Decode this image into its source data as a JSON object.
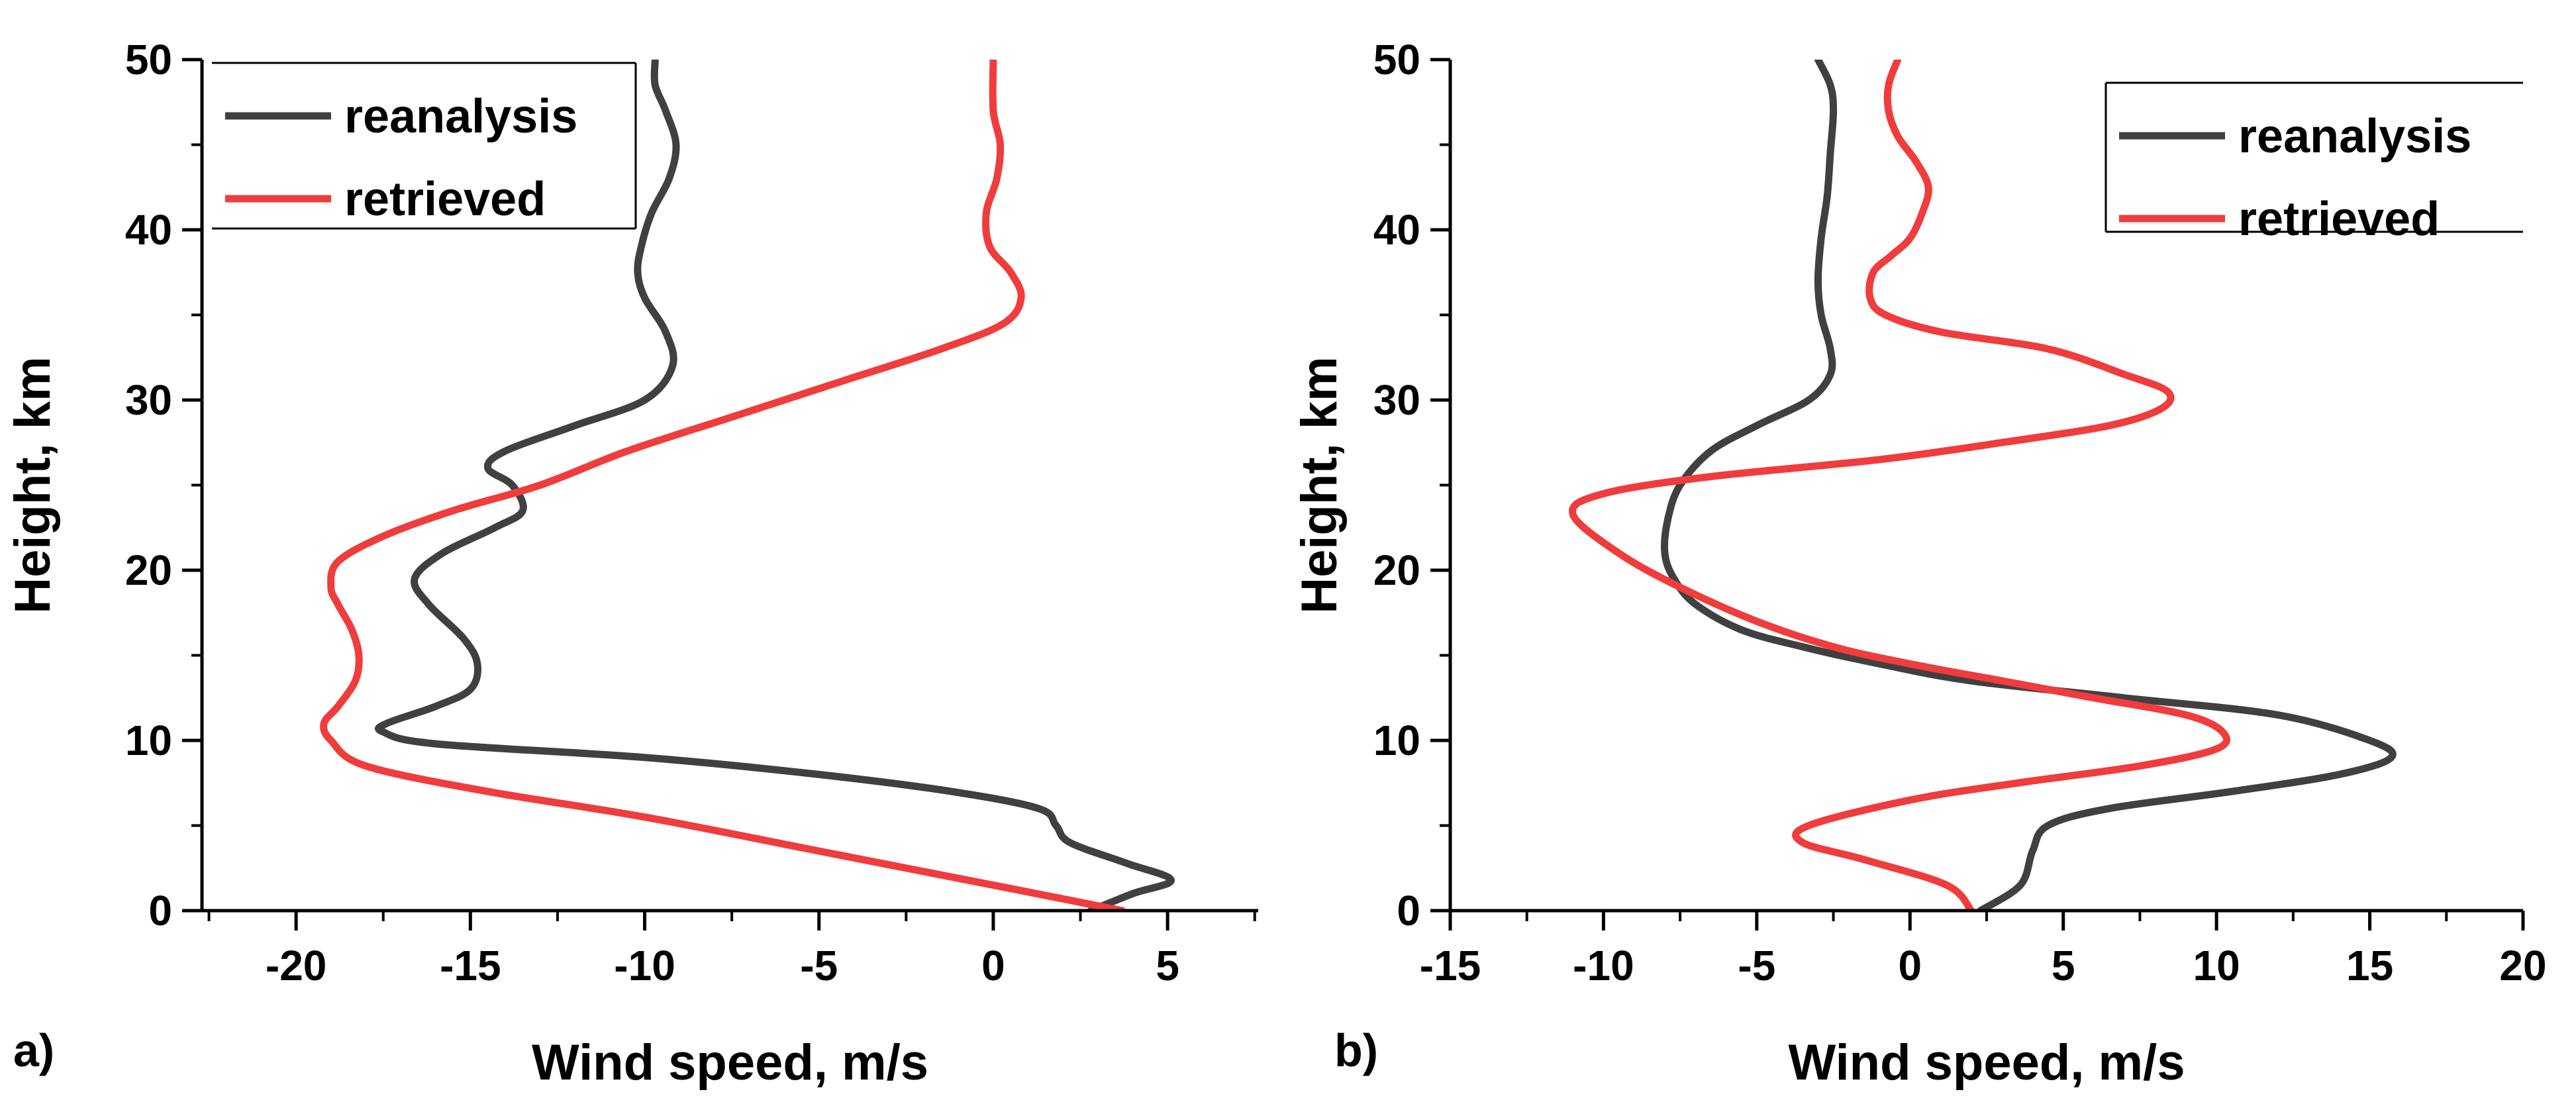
{
  "chart_data": [
    {
      "panel_label": "a)",
      "type": "line",
      "xlabel": "Wind speed, m/s",
      "ylabel": "Height, km",
      "xlim": [
        -22.7,
        7.6
      ],
      "ylim": [
        0,
        50
      ],
      "xticks": [
        -20,
        -15,
        -10,
        -5,
        0,
        5
      ],
      "yticks": [
        0,
        10,
        20,
        30,
        40,
        50
      ],
      "legend": {
        "position": "top-left",
        "entries": [
          "reanalysis",
          "retrieved"
        ]
      },
      "series": [
        {
          "name": "reanalysis",
          "color": "#404040",
          "points": [
            [
              2.8,
              0
            ],
            [
              4.0,
              1
            ],
            [
              5.1,
              1.8
            ],
            [
              3.8,
              2.8
            ],
            [
              2.2,
              4
            ],
            [
              1.8,
              5
            ],
            [
              1.3,
              6
            ],
            [
              -1.2,
              7
            ],
            [
              -5.0,
              8
            ],
            [
              -10.0,
              9
            ],
            [
              -16.0,
              9.8
            ],
            [
              -17.5,
              10.5
            ],
            [
              -17.4,
              11
            ],
            [
              -16.0,
              12
            ],
            [
              -15.0,
              13
            ],
            [
              -14.8,
              14.5
            ],
            [
              -15.2,
              16
            ],
            [
              -16.2,
              18
            ],
            [
              -16.6,
              19.5
            ],
            [
              -15.8,
              21
            ],
            [
              -14.3,
              22.5
            ],
            [
              -13.5,
              23.5
            ],
            [
              -13.8,
              25
            ],
            [
              -14.5,
              26
            ],
            [
              -14.0,
              27
            ],
            [
              -12.0,
              28.5
            ],
            [
              -10.0,
              30
            ],
            [
              -9.2,
              32
            ],
            [
              -9.4,
              34
            ],
            [
              -10.0,
              36
            ],
            [
              -10.2,
              37.5
            ],
            [
              -10.1,
              39
            ],
            [
              -9.8,
              41
            ],
            [
              -9.3,
              43
            ],
            [
              -9.1,
              45
            ],
            [
              -9.4,
              47
            ],
            [
              -9.7,
              48.5
            ],
            [
              -9.7,
              50
            ]
          ]
        },
        {
          "name": "retrieved",
          "color": "#f03c3c",
          "points": [
            [
              3.7,
              0
            ],
            [
              0.0,
              1.5
            ],
            [
              -5.0,
              3.5
            ],
            [
              -10.0,
              5.5
            ],
            [
              -14.5,
              7
            ],
            [
              -18.0,
              8.5
            ],
            [
              -19.0,
              10
            ],
            [
              -19.2,
              11
            ],
            [
              -18.8,
              12
            ],
            [
              -18.3,
              13.5
            ],
            [
              -18.2,
              15
            ],
            [
              -18.4,
              16.5
            ],
            [
              -18.8,
              18
            ],
            [
              -19.0,
              19
            ],
            [
              -18.8,
              20.5
            ],
            [
              -17.5,
              22
            ],
            [
              -15.5,
              23.5
            ],
            [
              -13.0,
              25
            ],
            [
              -10.5,
              27
            ],
            [
              -7.5,
              29
            ],
            [
              -4.5,
              31
            ],
            [
              -1.5,
              33
            ],
            [
              0.3,
              34.5
            ],
            [
              0.8,
              36
            ],
            [
              0.5,
              37.5
            ],
            [
              -0.1,
              39
            ],
            [
              -0.2,
              41
            ],
            [
              0.1,
              43
            ],
            [
              0.2,
              45
            ],
            [
              0.0,
              47
            ],
            [
              0.0,
              50
            ]
          ]
        }
      ]
    },
    {
      "panel_label": "b)",
      "type": "line",
      "xlabel": "Wind speed, m/s",
      "ylabel": "Height, km",
      "xlim": [
        -15,
        20
      ],
      "ylim": [
        0,
        50
      ],
      "xticks": [
        -15,
        -10,
        -5,
        0,
        5,
        10,
        15,
        20
      ],
      "yticks": [
        0,
        10,
        20,
        30,
        40,
        50
      ],
      "legend": {
        "position": "top-right",
        "entries": [
          "reanalysis",
          "retrieved"
        ]
      },
      "series": [
        {
          "name": "reanalysis",
          "color": "#404040",
          "points": [
            [
              2.3,
              0
            ],
            [
              3.6,
              1.5
            ],
            [
              4.0,
              3.5
            ],
            [
              4.5,
              5
            ],
            [
              6.5,
              6
            ],
            [
              10.5,
              7
            ],
            [
              14.0,
              8
            ],
            [
              15.7,
              9
            ],
            [
              15.0,
              10
            ],
            [
              12.0,
              11.5
            ],
            [
              7.0,
              12.5
            ],
            [
              2.0,
              13.5
            ],
            [
              -1.0,
              14.5
            ],
            [
              -3.5,
              15.5
            ],
            [
              -5.5,
              16.5
            ],
            [
              -7.0,
              18
            ],
            [
              -7.7,
              19.5
            ],
            [
              -8.0,
              21
            ],
            [
              -7.9,
              23
            ],
            [
              -7.5,
              25
            ],
            [
              -6.5,
              27
            ],
            [
              -5.0,
              28.5
            ],
            [
              -3.3,
              30
            ],
            [
              -2.6,
              31.5
            ],
            [
              -2.6,
              33
            ],
            [
              -2.9,
              35
            ],
            [
              -3.0,
              37
            ],
            [
              -2.9,
              39.5
            ],
            [
              -2.7,
              42
            ],
            [
              -2.6,
              44.5
            ],
            [
              -2.5,
              47
            ],
            [
              -2.6,
              48.5
            ],
            [
              -3.0,
              50
            ]
          ]
        },
        {
          "name": "retrieved",
          "color": "#f03c3c",
          "points": [
            [
              2.0,
              0
            ],
            [
              1.2,
              1.5
            ],
            [
              -1.5,
              3
            ],
            [
              -3.5,
              4
            ],
            [
              -3.3,
              5
            ],
            [
              0.0,
              6.5
            ],
            [
              3.5,
              7.5
            ],
            [
              7.5,
              8.5
            ],
            [
              10.0,
              9.5
            ],
            [
              10.2,
              10.5
            ],
            [
              9.0,
              11.5
            ],
            [
              6.0,
              12.5
            ],
            [
              3.0,
              13.5
            ],
            [
              0.0,
              14.5
            ],
            [
              -2.5,
              15.5
            ],
            [
              -5.0,
              17
            ],
            [
              -7.5,
              19
            ],
            [
              -9.5,
              21
            ],
            [
              -11.0,
              23.3
            ],
            [
              -10.0,
              24.5
            ],
            [
              -6.5,
              25.5
            ],
            [
              -1.0,
              26.5
            ],
            [
              3.0,
              27.5
            ],
            [
              6.5,
              28.5
            ],
            [
              8.2,
              29.5
            ],
            [
              8.4,
              30.5
            ],
            [
              7.0,
              31.5
            ],
            [
              4.5,
              33
            ],
            [
              1.0,
              34
            ],
            [
              -0.8,
              35
            ],
            [
              -1.3,
              36
            ],
            [
              -1.2,
              37.5
            ],
            [
              -0.6,
              38.5
            ],
            [
              0.0,
              39.5
            ],
            [
              0.4,
              41
            ],
            [
              0.6,
              42.5
            ],
            [
              0.2,
              44
            ],
            [
              -0.4,
              45.5
            ],
            [
              -0.7,
              47
            ],
            [
              -0.7,
              48.5
            ],
            [
              -0.4,
              50
            ]
          ]
        }
      ]
    }
  ]
}
